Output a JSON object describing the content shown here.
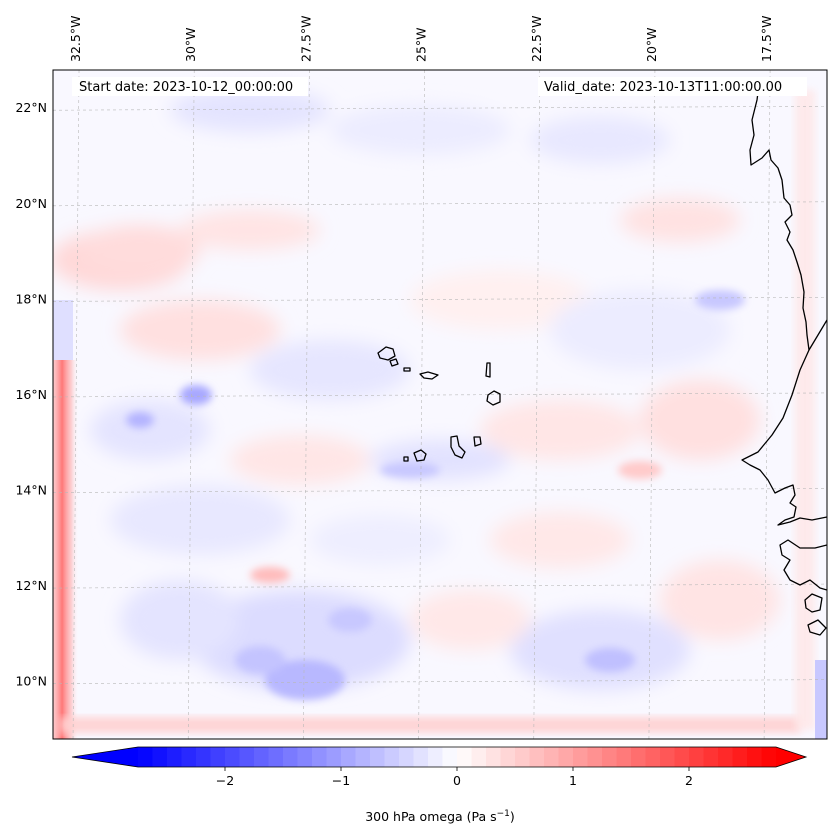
{
  "map": {
    "start_label": "Start date: 2023-10-12_00:00:00",
    "valid_label": "Valid_date: 2023-10-13T11:00:00.00",
    "extent": {
      "lon_min": -33.0,
      "lon_max": -16.2,
      "lat_min": 8.8,
      "lat_max": 22.8
    },
    "lon_ticks": [
      {
        "value": -32.5,
        "label": "32.5°W"
      },
      {
        "value": -30.0,
        "label": "30°W"
      },
      {
        "value": -27.5,
        "label": "27.5°W"
      },
      {
        "value": -25.0,
        "label": "25°W"
      },
      {
        "value": -22.5,
        "label": "22.5°W"
      },
      {
        "value": -20.0,
        "label": "20°W"
      },
      {
        "value": -17.5,
        "label": "17.5°W"
      }
    ],
    "lat_ticks": [
      {
        "value": 22,
        "label": "22°N"
      },
      {
        "value": 20,
        "label": "20°N"
      },
      {
        "value": 18,
        "label": "18°N"
      },
      {
        "value": 16,
        "label": "16°N"
      },
      {
        "value": 14,
        "label": "14°N"
      },
      {
        "value": 12,
        "label": "12°N"
      },
      {
        "value": 10,
        "label": "10°N"
      }
    ],
    "field_colors": {
      "negative": "#0000ff",
      "zero": "#ffffff",
      "positive": "#ff0000"
    },
    "coastline_color": "#000000",
    "gridlines": "dashed-light-gray"
  },
  "colorbar": {
    "label_main": "300 hPa omega (Pa s",
    "label_exp": "−1",
    "label_end": ")",
    "vmin": -2.75,
    "vmax": 2.75,
    "extend": "both",
    "ticks": [
      {
        "value": -2,
        "label": "−2"
      },
      {
        "value": -1,
        "label": "−1"
      },
      {
        "value": 0,
        "label": "0"
      },
      {
        "value": 1,
        "label": "1"
      },
      {
        "value": 2,
        "label": "2"
      }
    ]
  }
}
